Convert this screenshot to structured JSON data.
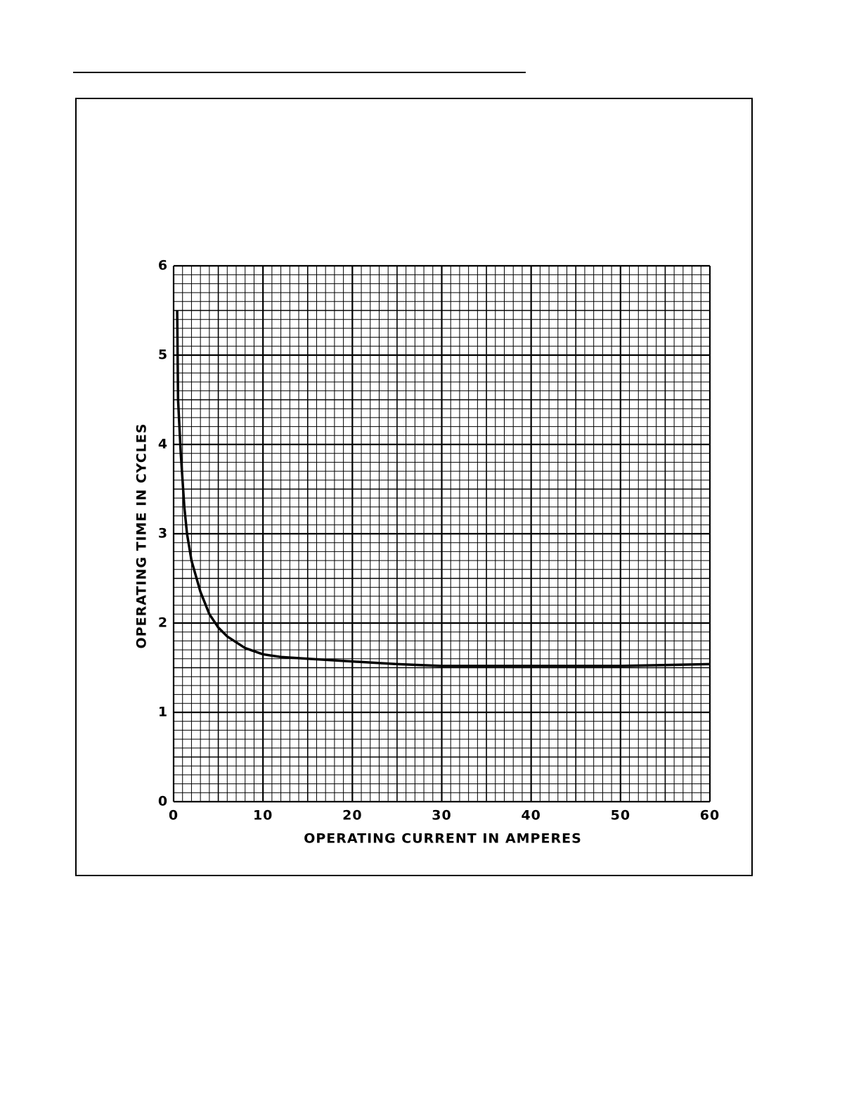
{
  "chart_data": {
    "type": "line",
    "x_label": "OPERATING CURRENT IN AMPERES",
    "y_label": "OPERATING TIME IN CYCLES",
    "xlim": [
      0,
      60
    ],
    "xticks": [
      0,
      10,
      20,
      30,
      40,
      50,
      60
    ],
    "ylim": [
      0,
      6
    ],
    "yticks": [
      0,
      1,
      2,
      3,
      4,
      5,
      6
    ],
    "grid": true,
    "series": [
      {
        "color": "#000000",
        "x": [
          0.4,
          0.5,
          0.8,
          1.2,
          1.5,
          2,
          3,
          4,
          5,
          6,
          8,
          10,
          12,
          15,
          20,
          25,
          30,
          40,
          50,
          60
        ],
        "values": [
          5.5,
          4.5,
          3.9,
          3.3,
          3.0,
          2.7,
          2.35,
          2.1,
          1.95,
          1.85,
          1.72,
          1.65,
          1.62,
          1.6,
          1.57,
          1.54,
          1.52,
          1.52,
          1.52,
          1.54
        ]
      }
    ]
  }
}
